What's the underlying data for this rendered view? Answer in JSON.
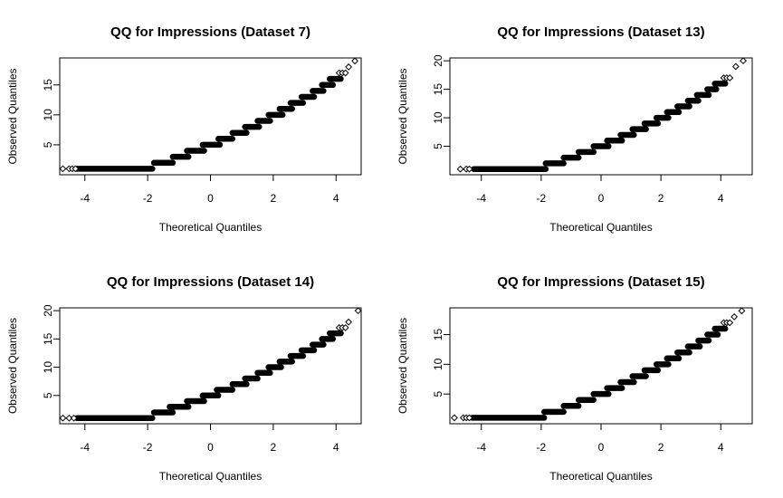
{
  "chart_data": [
    {
      "type": "scatter",
      "title": "QQ for Impressions (Dataset 7)",
      "xlabel": "Theoretical Quantiles",
      "ylabel": "Observed Quantiles",
      "xlim": [
        -4.8,
        4.8
      ],
      "ylim": [
        0,
        19.5
      ],
      "xticks": [
        -4,
        -2,
        0,
        2,
        4
      ],
      "yticks": [
        5,
        10,
        15
      ],
      "xtick_labels": [
        "-4",
        "-2",
        "0",
        "2",
        "4"
      ],
      "ytick_labels": [
        "5",
        "10",
        "15"
      ],
      "points": [
        [
          -4.7,
          1
        ],
        [
          -4.5,
          1
        ],
        [
          -4.4,
          1
        ],
        [
          -4.3,
          1
        ],
        [
          4.1,
          17
        ],
        [
          4.2,
          17
        ],
        [
          4.3,
          17
        ],
        [
          4.4,
          18
        ],
        [
          4.6,
          19
        ]
      ],
      "steps": [
        {
          "y": 1,
          "x0": -4.25,
          "x1": -1.85
        },
        {
          "y": 2,
          "x0": -1.8,
          "x1": -1.2
        },
        {
          "y": 3,
          "x0": -1.2,
          "x1": -0.7
        },
        {
          "y": 4,
          "x0": -0.75,
          "x1": -0.2
        },
        {
          "y": 5,
          "x0": -0.25,
          "x1": 0.3
        },
        {
          "y": 6,
          "x0": 0.25,
          "x1": 0.7
        },
        {
          "y": 7,
          "x0": 0.7,
          "x1": 1.15
        },
        {
          "y": 8,
          "x0": 1.1,
          "x1": 1.55
        },
        {
          "y": 9,
          "x0": 1.5,
          "x1": 1.9
        },
        {
          "y": 10,
          "x0": 1.85,
          "x1": 2.3
        },
        {
          "y": 11,
          "x0": 2.2,
          "x1": 2.6
        },
        {
          "y": 12,
          "x0": 2.55,
          "x1": 2.95
        },
        {
          "y": 13,
          "x0": 2.9,
          "x1": 3.3
        },
        {
          "y": 14,
          "x0": 3.25,
          "x1": 3.6
        },
        {
          "y": 15,
          "x0": 3.55,
          "x1": 3.9
        },
        {
          "y": 16,
          "x0": 3.8,
          "x1": 4.15
        }
      ]
    },
    {
      "type": "scatter",
      "title": "QQ for Impressions (Dataset 13)",
      "xlabel": "Theoretical Quantiles",
      "ylabel": "Observed Quantiles",
      "xlim": [
        -5.05,
        5.05
      ],
      "ylim": [
        0,
        20.5
      ],
      "xticks": [
        -4,
        -2,
        0,
        2,
        4
      ],
      "yticks": [
        5,
        10,
        15,
        20
      ],
      "xtick_labels": [
        "-4",
        "-2",
        "0",
        "2",
        "4"
      ],
      "ytick_labels": [
        "5",
        "10",
        "15",
        "20"
      ],
      "points": [
        [
          -4.7,
          1
        ],
        [
          -4.5,
          1
        ],
        [
          -4.4,
          1
        ],
        [
          4.1,
          17
        ],
        [
          4.2,
          17
        ],
        [
          4.3,
          17
        ],
        [
          4.5,
          19
        ],
        [
          4.75,
          20
        ]
      ],
      "steps": [
        {
          "y": 1,
          "x0": -4.25,
          "x1": -1.85
        },
        {
          "y": 2,
          "x0": -1.85,
          "x1": -1.25
        },
        {
          "y": 3,
          "x0": -1.25,
          "x1": -0.75
        },
        {
          "y": 4,
          "x0": -0.75,
          "x1": -0.25
        },
        {
          "y": 5,
          "x0": -0.25,
          "x1": 0.25
        },
        {
          "y": 6,
          "x0": 0.2,
          "x1": 0.7
        },
        {
          "y": 7,
          "x0": 0.65,
          "x1": 1.1
        },
        {
          "y": 8,
          "x0": 1.05,
          "x1": 1.5
        },
        {
          "y": 9,
          "x0": 1.45,
          "x1": 1.9
        },
        {
          "y": 10,
          "x0": 1.85,
          "x1": 2.25
        },
        {
          "y": 11,
          "x0": 2.2,
          "x1": 2.6
        },
        {
          "y": 12,
          "x0": 2.55,
          "x1": 2.95
        },
        {
          "y": 13,
          "x0": 2.9,
          "x1": 3.25
        },
        {
          "y": 14,
          "x0": 3.2,
          "x1": 3.6
        },
        {
          "y": 15,
          "x0": 3.55,
          "x1": 3.85
        },
        {
          "y": 16,
          "x0": 3.8,
          "x1": 4.15
        }
      ]
    },
    {
      "type": "scatter",
      "title": "QQ for Impressions (Dataset 14)",
      "xlabel": "Theoretical Quantiles",
      "ylabel": "Observed Quantiles",
      "xlim": [
        -4.8,
        4.8
      ],
      "ylim": [
        0,
        20.5
      ],
      "xticks": [
        -4,
        -2,
        0,
        2,
        4
      ],
      "yticks": [
        5,
        10,
        15,
        20
      ],
      "xtick_labels": [
        "-4",
        "-2",
        "0",
        "2",
        "4"
      ],
      "ytick_labels": [
        "5",
        "10",
        "15",
        "20"
      ],
      "points": [
        [
          -4.7,
          1
        ],
        [
          -4.5,
          1
        ],
        [
          -4.35,
          1
        ],
        [
          4.1,
          17
        ],
        [
          4.2,
          17
        ],
        [
          4.3,
          17
        ],
        [
          4.4,
          18
        ],
        [
          4.7,
          20
        ]
      ],
      "steps": [
        {
          "y": 1,
          "x0": -4.25,
          "x1": -1.85
        },
        {
          "y": 2,
          "x0": -1.8,
          "x1": -1.2
        },
        {
          "y": 3,
          "x0": -1.3,
          "x1": -0.7
        },
        {
          "y": 4,
          "x0": -0.75,
          "x1": -0.2
        },
        {
          "y": 5,
          "x0": -0.25,
          "x1": 0.25
        },
        {
          "y": 6,
          "x0": 0.2,
          "x1": 0.7
        },
        {
          "y": 7,
          "x0": 0.7,
          "x1": 1.15
        },
        {
          "y": 8,
          "x0": 1.1,
          "x1": 1.5
        },
        {
          "y": 9,
          "x0": 1.5,
          "x1": 1.9
        },
        {
          "y": 10,
          "x0": 1.85,
          "x1": 2.25
        },
        {
          "y": 11,
          "x0": 2.2,
          "x1": 2.6
        },
        {
          "y": 12,
          "x0": 2.55,
          "x1": 2.95
        },
        {
          "y": 13,
          "x0": 2.9,
          "x1": 3.3
        },
        {
          "y": 14,
          "x0": 3.25,
          "x1": 3.6
        },
        {
          "y": 15,
          "x0": 3.55,
          "x1": 3.9
        },
        {
          "y": 16,
          "x0": 3.8,
          "x1": 4.15
        }
      ]
    },
    {
      "type": "scatter",
      "title": "QQ for Impressions (Dataset 15)",
      "xlabel": "Theoretical Quantiles",
      "ylabel": "Observed Quantiles",
      "xlim": [
        -5.05,
        5.05
      ],
      "ylim": [
        0,
        19.5
      ],
      "xticks": [
        -4,
        -2,
        0,
        2,
        4
      ],
      "yticks": [
        5,
        10,
        15
      ],
      "xtick_labels": [
        "-4",
        "-2",
        "0",
        "2",
        "4"
      ],
      "ytick_labels": [
        "5",
        "10",
        "15"
      ],
      "points": [
        [
          -4.9,
          1
        ],
        [
          -4.6,
          1
        ],
        [
          -4.5,
          1
        ],
        [
          -4.4,
          1
        ],
        [
          4.1,
          17
        ],
        [
          4.2,
          17
        ],
        [
          4.3,
          17
        ],
        [
          4.45,
          18
        ],
        [
          4.7,
          19
        ]
      ],
      "steps": [
        {
          "y": 1,
          "x0": -4.3,
          "x1": -1.9
        },
        {
          "y": 2,
          "x0": -1.9,
          "x1": -1.25
        },
        {
          "y": 3,
          "x0": -1.25,
          "x1": -0.75
        },
        {
          "y": 4,
          "x0": -0.75,
          "x1": -0.25
        },
        {
          "y": 5,
          "x0": -0.25,
          "x1": 0.25
        },
        {
          "y": 6,
          "x0": 0.2,
          "x1": 0.7
        },
        {
          "y": 7,
          "x0": 0.65,
          "x1": 1.1
        },
        {
          "y": 8,
          "x0": 1.05,
          "x1": 1.5
        },
        {
          "y": 9,
          "x0": 1.45,
          "x1": 1.9
        },
        {
          "y": 10,
          "x0": 1.85,
          "x1": 2.25
        },
        {
          "y": 11,
          "x0": 2.2,
          "x1": 2.6
        },
        {
          "y": 12,
          "x0": 2.55,
          "x1": 2.95
        },
        {
          "y": 13,
          "x0": 2.9,
          "x1": 3.3
        },
        {
          "y": 14,
          "x0": 3.25,
          "x1": 3.6
        },
        {
          "y": 15,
          "x0": 3.55,
          "x1": 3.9
        },
        {
          "y": 16,
          "x0": 3.8,
          "x1": 4.15
        }
      ]
    }
  ]
}
